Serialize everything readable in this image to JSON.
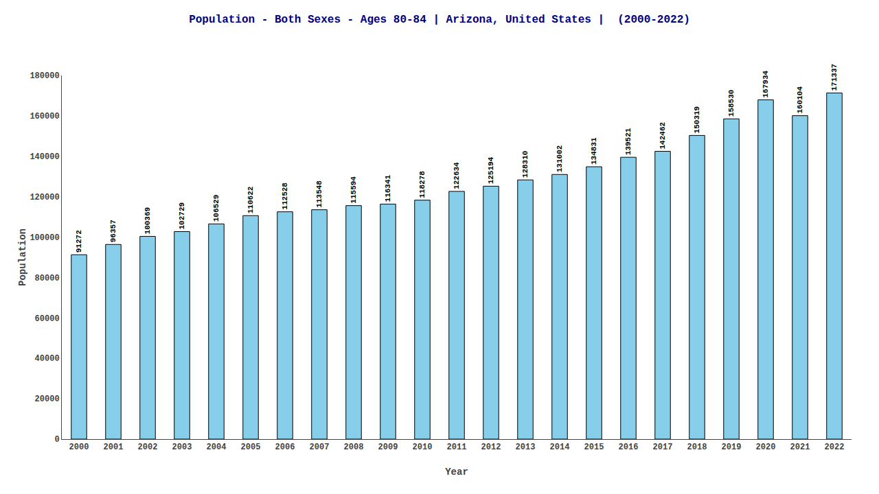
{
  "chart_data": {
    "type": "bar",
    "title": "Population - Both Sexes - Ages 80-84 | Arizona, United States |  (2000-2022)",
    "x_label": "Year",
    "y_label": "Population",
    "categories": [
      "2000",
      "2001",
      "2002",
      "2003",
      "2004",
      "2005",
      "2006",
      "2007",
      "2008",
      "2009",
      "2010",
      "2011",
      "2012",
      "2013",
      "2014",
      "2015",
      "2016",
      "2017",
      "2018",
      "2019",
      "2020",
      "2021",
      "2022"
    ],
    "values": [
      91272,
      96357,
      100369,
      102729,
      106529,
      110622,
      112528,
      113548,
      115594,
      116341,
      118278,
      122634,
      125194,
      128310,
      131002,
      134831,
      139521,
      142462,
      150319,
      158530,
      167934,
      160104,
      171337
    ],
    "color": "#87CEEB",
    "ylim": [
      0,
      180000
    ],
    "yticks": [
      0,
      20000,
      40000,
      60000,
      80000,
      100000,
      120000,
      140000,
      160000,
      180000
    ],
    "grid": false,
    "data_labels": true
  }
}
